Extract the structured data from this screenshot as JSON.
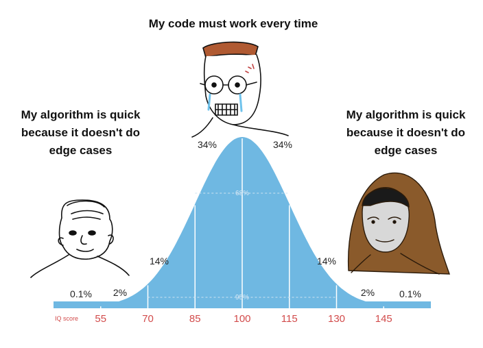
{
  "captions": {
    "top": "My code must work every time",
    "left": "My algorithm is quick\nbecause it doesn't do\nedge cases",
    "right": "My algorithm is quick\nbecause it doesn't do\nedge cases"
  },
  "chart_data": {
    "type": "area",
    "axis_label": "IQ score",
    "ticks": [
      55,
      70,
      85,
      100,
      115,
      130,
      145
    ],
    "mean": 100,
    "sd": 15,
    "xlim": [
      40,
      160
    ],
    "region_labels": [
      "0.1%",
      "2%",
      "14%",
      "34%",
      "34%",
      "14%",
      "2%",
      "0.1%"
    ],
    "inner_labels": [
      "68%",
      "95%"
    ]
  },
  "characters": {
    "left": "wojak-simple",
    "middle": "wojak-crying-glasses",
    "right": "hooded-monk"
  },
  "colors": {
    "curve_fill": "#6fb8e2",
    "tick_text": "#d24b4b",
    "brown_hood": "#8a5a2b"
  }
}
